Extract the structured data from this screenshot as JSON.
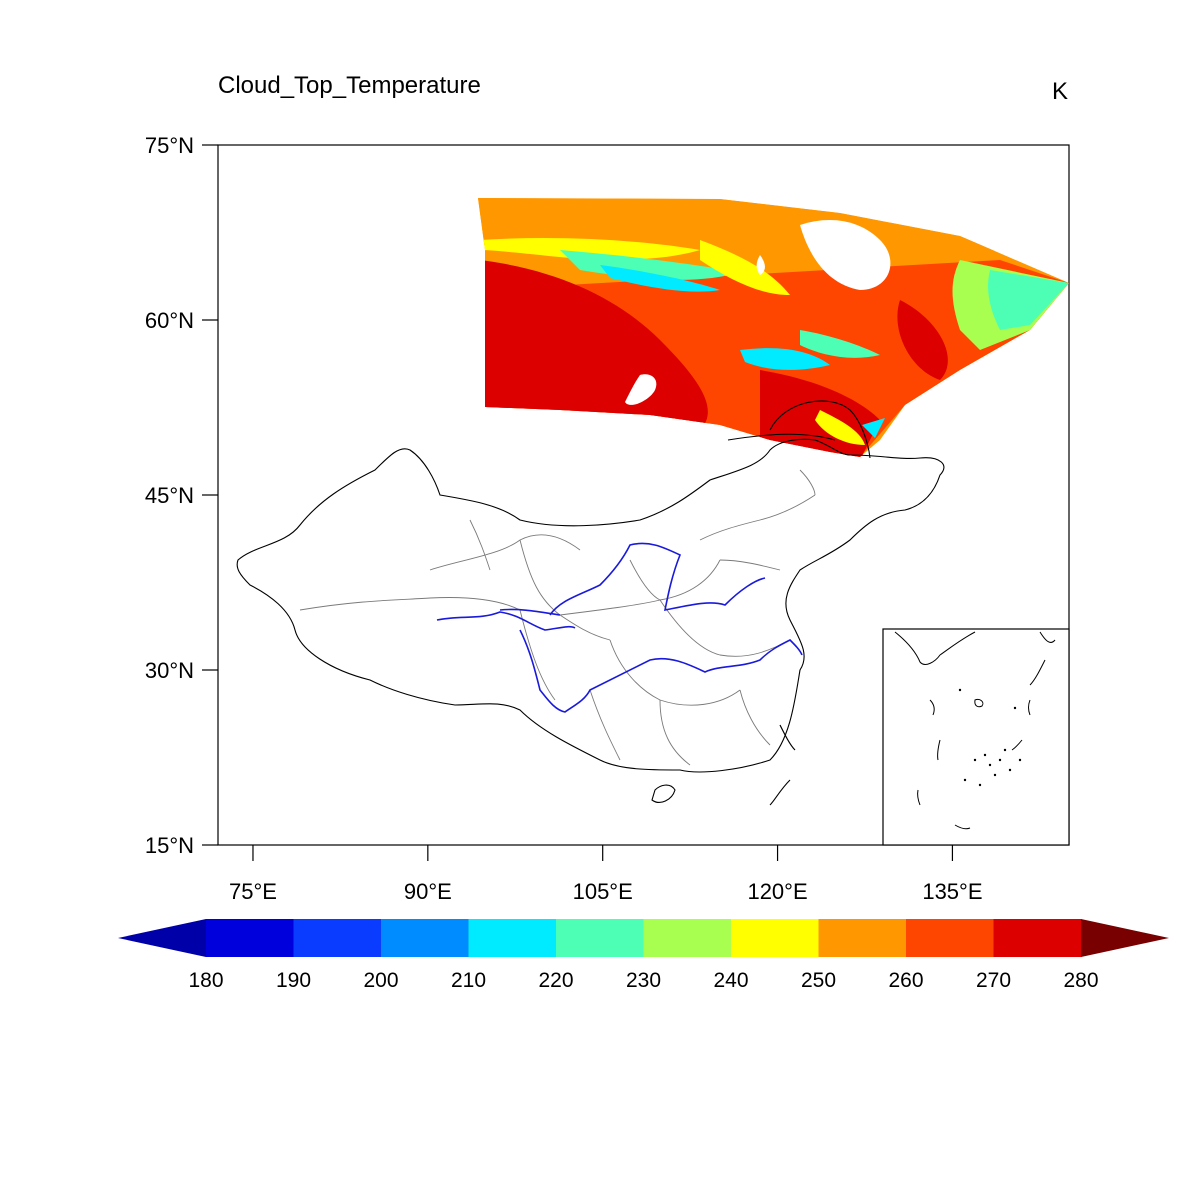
{
  "title": "Cloud_Top_Temperature",
  "units": "K",
  "map": {
    "lat_range": [
      15,
      75
    ],
    "lon_range": [
      72,
      145
    ],
    "lat_ticks": [
      "15°N",
      "30°N",
      "45°N",
      "60°N",
      "75°N"
    ],
    "lon_ticks": [
      "75°E",
      "90°E",
      "105°E",
      "120°E",
      "135°E"
    ],
    "inset_map": true,
    "rivers_color": "#1a1adc",
    "borders_color": "#000000"
  },
  "colorbar": {
    "labels": [
      "180",
      "190",
      "200",
      "210",
      "220",
      "230",
      "240",
      "250",
      "260",
      "270",
      "280"
    ],
    "colors": [
      "#0000a8",
      "#0000dc",
      "#0a3cff",
      "#008cff",
      "#00ebff",
      "#4dffb4",
      "#a8ff50",
      "#ffff00",
      "#ff9800",
      "#ff4600",
      "#dc0000",
      "#780000"
    ]
  },
  "chart_data": {
    "type": "heatmap",
    "title": "Cloud_Top_Temperature",
    "units": "K",
    "xlabel": "",
    "ylabel": "",
    "xlim": [
      72,
      145
    ],
    "ylim": [
      15,
      75
    ],
    "value_range": [
      180,
      280
    ],
    "contour_levels": [
      180,
      190,
      200,
      210,
      220,
      230,
      240,
      250,
      260,
      270,
      280
    ],
    "swath": {
      "lon_range": [
        94,
        145
      ],
      "lat_range": [
        48,
        70.5
      ],
      "dominant_values": "mostly 250–280 K; bands of 220–240 K near 62–64°N; some 210–220 K patches"
    }
  }
}
